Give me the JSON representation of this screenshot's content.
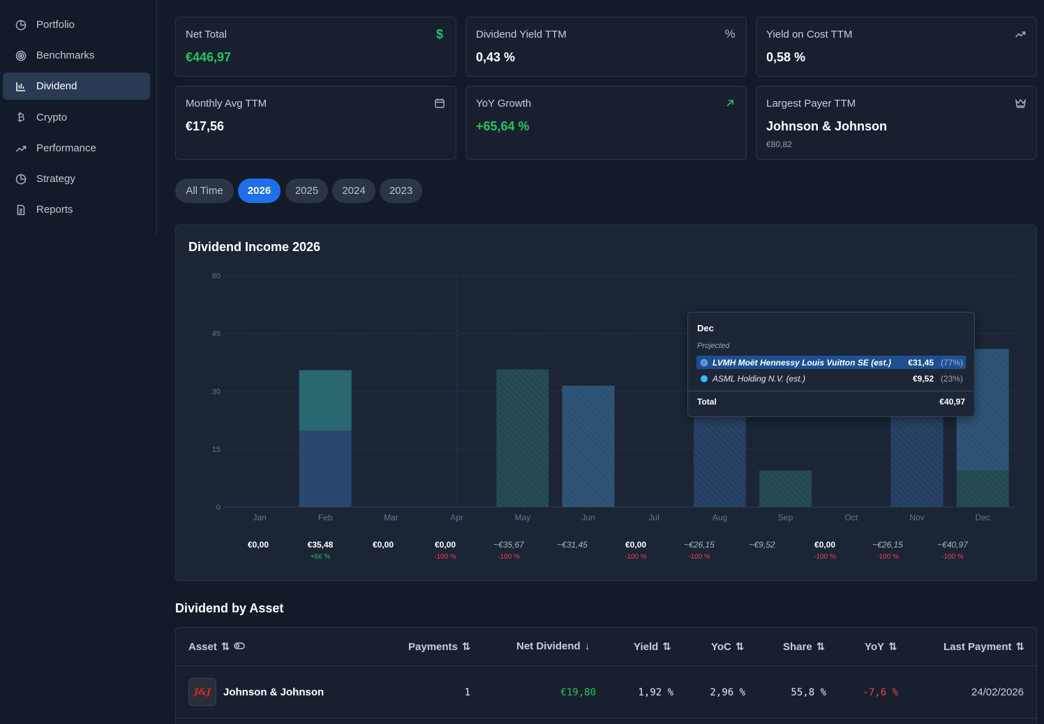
{
  "sidebar": {
    "items": [
      {
        "label": "Portfolio",
        "icon": "pie-chart-icon",
        "active": false
      },
      {
        "label": "Benchmarks",
        "icon": "target-icon",
        "active": false
      },
      {
        "label": "Dividend",
        "icon": "bar-chart-icon",
        "active": true
      },
      {
        "label": "Crypto",
        "icon": "bitcoin-icon",
        "active": false
      },
      {
        "label": "Performance",
        "icon": "trend-icon",
        "active": false
      },
      {
        "label": "Strategy",
        "icon": "pie-chart-icon",
        "active": false
      },
      {
        "label": "Reports",
        "icon": "document-icon",
        "active": false
      }
    ]
  },
  "stats": [
    {
      "label": "Net Total",
      "value": "€446,97",
      "sub": "",
      "icon": "dollar-icon",
      "color": "green"
    },
    {
      "label": "Dividend Yield TTM",
      "value": "0,43 %",
      "sub": "",
      "icon": "percent-icon",
      "color": "white"
    },
    {
      "label": "Yield on Cost TTM",
      "value": "0,58 %",
      "sub": "",
      "icon": "trend-up-icon",
      "color": "white"
    },
    {
      "label": "Monthly Avg TTM",
      "value": "€17,56",
      "sub": "",
      "icon": "calendar-icon",
      "color": "white"
    },
    {
      "label": "YoY Growth",
      "value": "+65,64 %",
      "sub": "",
      "icon": "arrow-up-right-icon",
      "color": "green"
    },
    {
      "label": "Largest Payer TTM",
      "value": "Johnson & Johnson",
      "sub": "€80,82",
      "icon": "crown-icon",
      "color": "white"
    }
  ],
  "periods": [
    "All Time",
    "2026",
    "2025",
    "2024",
    "2023"
  ],
  "active_period": "2026",
  "chart": {
    "title": "Dividend Income 2026"
  },
  "chart_data": {
    "type": "bar",
    "title": "Dividend Income 2026",
    "categories": [
      "Jan",
      "Feb",
      "Mar",
      "Apr",
      "May",
      "Jun",
      "Jul",
      "Aug",
      "Sep",
      "Oct",
      "Nov",
      "Dec"
    ],
    "ylim": [
      0,
      60
    ],
    "yticks": [
      0,
      15,
      30,
      45,
      60
    ],
    "series": [
      {
        "name": "Johnson & Johnson",
        "values": [
          0,
          19.8,
          0,
          0,
          0,
          0,
          0,
          0,
          0,
          0,
          0,
          0
        ],
        "color": "#2b4a72",
        "projected": [
          false,
          false,
          false,
          false,
          false,
          false,
          false,
          false,
          false,
          false,
          false,
          false
        ]
      },
      {
        "name": "",
        "values": [
          0,
          15.68,
          0,
          0,
          0,
          0,
          0,
          0,
          0,
          0,
          0,
          0
        ],
        "color": "#2a6b72",
        "projected": [
          false,
          false,
          false,
          false,
          false,
          false,
          false,
          false,
          false,
          false,
          false,
          false
        ]
      },
      {
        "name": "projected-a",
        "values": [
          0,
          0,
          0,
          0,
          0,
          0,
          0,
          26.15,
          0,
          0,
          26.15,
          0
        ],
        "color": "#263f63",
        "projected": [
          false,
          false,
          false,
          false,
          false,
          false,
          false,
          true,
          false,
          false,
          true,
          false
        ]
      },
      {
        "name": "ASML Holding N.V. (est.)",
        "values": [
          0,
          0,
          0,
          0,
          35.67,
          0,
          0,
          0,
          9.52,
          0,
          0,
          9.52
        ],
        "color": "#244a52",
        "projected": [
          false,
          false,
          false,
          false,
          true,
          false,
          false,
          false,
          true,
          false,
          false,
          true
        ]
      },
      {
        "name": "LVMH Moët Hennessy Louis Vuitton SE (est.)",
        "values": [
          0,
          0,
          0,
          0,
          0,
          31.45,
          0,
          0,
          0,
          0,
          0,
          31.45
        ],
        "color": "#2d5377",
        "projected": [
          false,
          false,
          false,
          false,
          false,
          true,
          false,
          false,
          false,
          false,
          false,
          true
        ]
      }
    ],
    "month_totals": [
      "€0,00",
      "€35,48",
      "€0,00",
      "€0,00",
      "~€35,67",
      "~€31,45",
      "€0,00",
      "~€26,15",
      "~€9,52",
      "€0,00",
      "~€26,15",
      "~€40,97"
    ],
    "month_changes": [
      "",
      "+66 %",
      "",
      "-100 %",
      "-100 %",
      "",
      "-100 %",
      "-100 %",
      "",
      "-100 %",
      "-100 %",
      "-100 %"
    ],
    "month_change_colors": [
      "",
      "green",
      "",
      "red",
      "red",
      "",
      "red",
      "red",
      "",
      "red",
      "red",
      "red"
    ],
    "grid": true
  },
  "tooltip": {
    "month": "Dec",
    "subtitle": "Projected",
    "rows": [
      {
        "name": "LVMH Moët Hennessy Louis Vuitton SE (est.)",
        "value": "€31,45",
        "pct": "(77%)",
        "color": "#4a90d9",
        "highlighted": true
      },
      {
        "name": "ASML Holding N.V. (est.)",
        "value": "€9,52",
        "pct": "(23%)",
        "color": "#38bdf8",
        "highlighted": false
      }
    ],
    "total_label": "Total",
    "total_value": "€40,97"
  },
  "table": {
    "title": "Dividend by Asset",
    "headers": {
      "asset": "Asset",
      "payments": "Payments",
      "net": "Net Dividend",
      "yield": "Yield",
      "yoc": "YoC",
      "share": "Share",
      "yoy": "YoY",
      "last": "Last Payment"
    },
    "rows": [
      {
        "asset": "Johnson & Johnson",
        "logo": "jnj-logo",
        "payments": "1",
        "net": "€19,80",
        "yield": "1,92 %",
        "yoc": "2,96 %",
        "share": "55,8 %",
        "yoy": "-7,6 %",
        "last": "24/02/2026"
      }
    ]
  }
}
